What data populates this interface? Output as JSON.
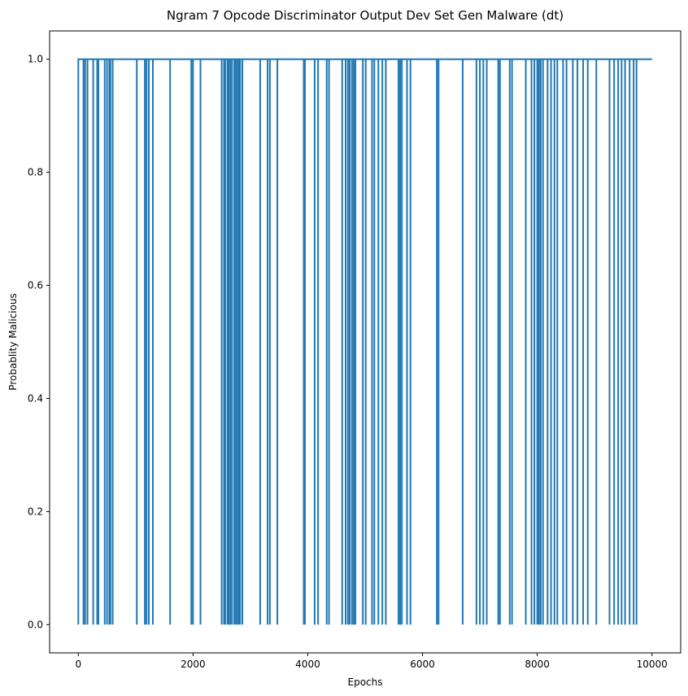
{
  "chart_data": {
    "type": "line",
    "title": "Ngram 7 Opcode Discriminator Output Dev Set Gen Malware (dt)",
    "xlabel": "Epochs",
    "ylabel": "Probablity Malicious",
    "xlim": [
      -500,
      10500
    ],
    "ylim": [
      -0.05,
      1.05
    ],
    "xticks": [
      0,
      2000,
      4000,
      6000,
      8000,
      10000
    ],
    "yticks": [
      0.0,
      0.2,
      0.4,
      0.6,
      0.8,
      1.0
    ],
    "xtick_labels": [
      "0",
      "2000",
      "4000",
      "6000",
      "8000",
      "10000"
    ],
    "ytick_labels": [
      "0.0",
      "0.2",
      "0.4",
      "0.6",
      "0.8",
      "1.0"
    ],
    "grid": false,
    "legend": "none",
    "series_color": "#1f77b4",
    "series": [
      {
        "baseline": 1.0,
        "x_range": [
          0,
          10000
        ],
        "zero_epochs": [
          0,
          90,
          120,
          160,
          260,
          330,
          350,
          460,
          500,
          540,
          560,
          600,
          1020,
          1160,
          1190,
          1230,
          1300,
          1600,
          1970,
          2000,
          2130,
          2500,
          2540,
          2560,
          2600,
          2620,
          2650,
          2680,
          2720,
          2740,
          2770,
          2800,
          2820,
          2860,
          3170,
          3300,
          3340,
          3470,
          3930,
          3950,
          4120,
          4180,
          4330,
          4370,
          4600,
          4660,
          4700,
          4730,
          4770,
          4800,
          4830,
          4960,
          5010,
          5120,
          5160,
          5230,
          5300,
          5360,
          5580,
          5610,
          5640,
          5730,
          5790,
          6250,
          6280,
          6700,
          6940,
          7000,
          7060,
          7120,
          7320,
          7350,
          7520,
          7560,
          7800,
          7900,
          7950,
          8000,
          8030,
          8060,
          8100,
          8180,
          8240,
          8300,
          8350,
          8450,
          8510,
          8620,
          8700,
          8800,
          8880,
          9030,
          9260,
          9340,
          9410,
          9470,
          9530,
          9610,
          9680,
          9730
        ]
      }
    ]
  }
}
